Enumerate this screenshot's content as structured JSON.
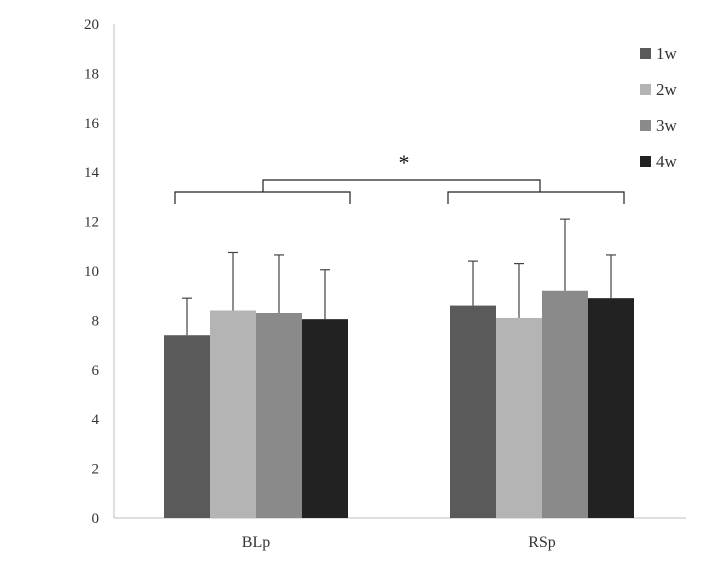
{
  "chart_data": {
    "type": "bar",
    "categories": [
      "BLp",
      "RSp"
    ],
    "series": [
      {
        "name": "1w",
        "values": [
          7.4,
          8.6
        ],
        "errors": [
          1.5,
          1.8
        ],
        "color": "#5a5a5a"
      },
      {
        "name": "2w",
        "values": [
          8.4,
          8.1
        ],
        "errors": [
          2.35,
          2.2
        ],
        "color": "#b4b4b4"
      },
      {
        "name": "3w",
        "values": [
          8.3,
          9.2
        ],
        "errors": [
          2.35,
          2.9
        ],
        "color": "#8a8a8a"
      },
      {
        "name": "4w",
        "values": [
          8.05,
          8.9
        ],
        "errors": [
          2.0,
          1.75
        ],
        "color": "#222222"
      }
    ],
    "ylim": [
      0,
      20
    ],
    "yticks": [
      0,
      2,
      4,
      6,
      8,
      10,
      12,
      14,
      16,
      18,
      20
    ],
    "grid": false,
    "legend_position": "top-right",
    "annotations": [
      {
        "text": "*",
        "type": "significance-bracket",
        "between": [
          "BLp",
          "RSp"
        ]
      }
    ],
    "title": "",
    "xlabel": "",
    "ylabel": ""
  }
}
